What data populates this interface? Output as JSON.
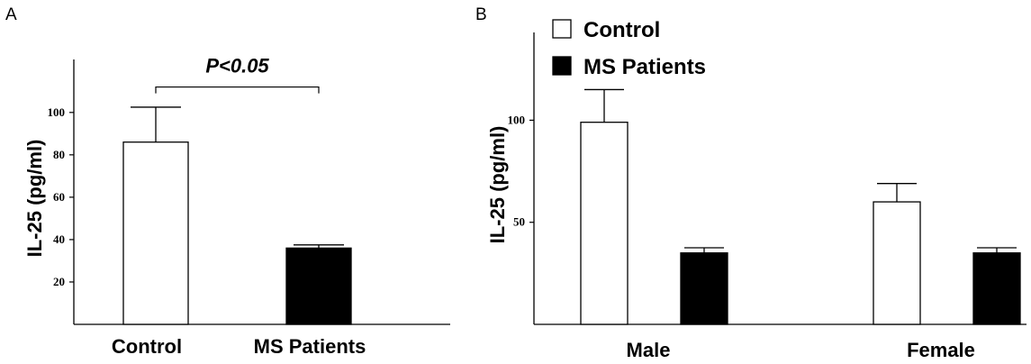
{
  "chart_data": [
    {
      "panel": "A",
      "type": "bar",
      "title": "",
      "ylabel": "IL-25 (pg/ml)",
      "xlabel": "",
      "ylim": [
        0,
        125
      ],
      "yticks": [
        20,
        40,
        60,
        80,
        100
      ],
      "categories": [
        "Control",
        "MS Patients"
      ],
      "values": [
        86,
        36
      ],
      "errors": [
        16.5,
        1.5
      ],
      "bar_colors": [
        "#ffffff",
        "#000000"
      ],
      "annotation": {
        "text": "P<0.05",
        "between": [
          0,
          1
        ],
        "y": 112
      }
    },
    {
      "panel": "B",
      "type": "bar",
      "title": "",
      "ylabel": "IL-25 (pg/ml)",
      "xlabel": "",
      "ylim": [
        0,
        143
      ],
      "yticks": [
        50,
        100
      ],
      "categories": [
        "Male",
        "Female"
      ],
      "series": [
        {
          "name": "Control",
          "values": [
            99,
            60
          ],
          "errors": [
            16,
            9
          ],
          "color": "#ffffff"
        },
        {
          "name": "MS Patients",
          "values": [
            35,
            35
          ],
          "errors": [
            2.5,
            2.5
          ],
          "color": "#000000"
        }
      ],
      "legend_position": "top-left"
    }
  ]
}
